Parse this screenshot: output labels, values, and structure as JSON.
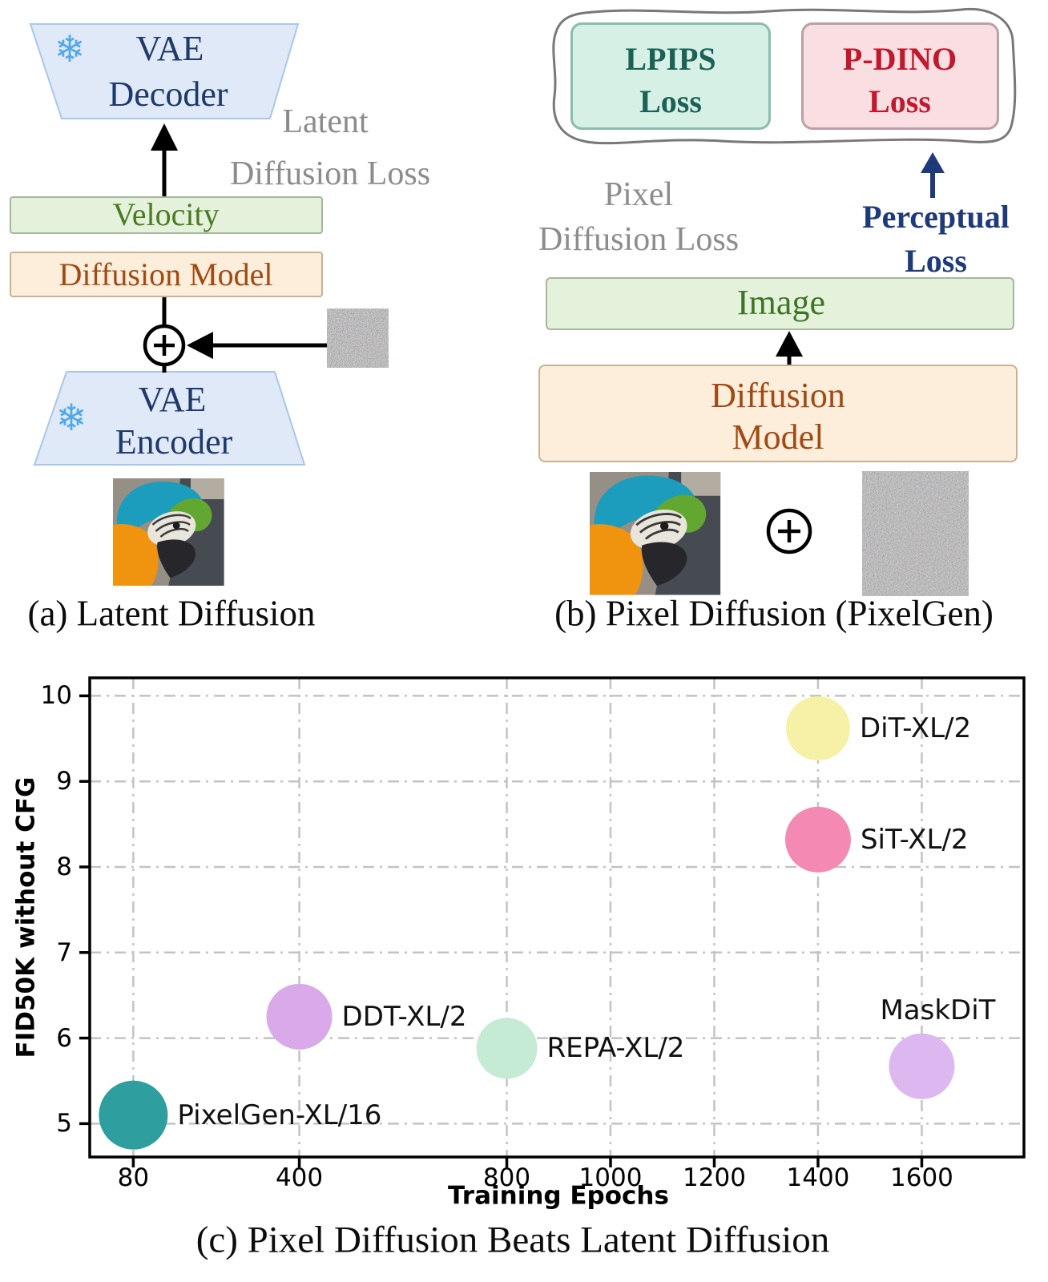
{
  "panel_a": {
    "decoder_line1": "VAE",
    "decoder_line2": "Decoder",
    "encoder_line1": "VAE",
    "encoder_line2": "Encoder",
    "velocity_label": "Velocity",
    "diffusion_model_label": "Diffusion Model",
    "loss_line1": "Latent",
    "loss_line2": "Diffusion Loss",
    "snowflake_icon": "❄",
    "plus_icon": "+",
    "caption": "(a) Latent Diffusion"
  },
  "panel_b": {
    "lpips_line1": "LPIPS",
    "lpips_line2": "Loss",
    "pdino_line1": "P-DINO",
    "pdino_line2": "Loss",
    "pixel_loss_line1": "Pixel",
    "pixel_loss_line2": "Diffusion Loss",
    "perceptual_line1": "Perceptual",
    "perceptual_line2": "Loss",
    "image_label": "Image",
    "dm_line1": "Diffusion",
    "dm_line2": "Model",
    "plus_icon": "+",
    "caption": "(b) Pixel Diffusion (PixelGen)"
  },
  "chart_data": {
    "type": "scatter",
    "title": "(c) Pixel Diffusion Beats Latent Diffusion",
    "xlabel": "Training Epochs",
    "ylabel": "FID50K without CFG",
    "xlim": [
      -4,
      1797
    ],
    "ylim": [
      4.61,
      10.21
    ],
    "x_ticks": [
      80,
      400,
      800,
      1000,
      1200,
      1400,
      1600
    ],
    "y_ticks": [
      10,
      9,
      8,
      7,
      6,
      5
    ],
    "grid": "dash-dot light gray, on",
    "legend": "none (direct point labels)",
    "points": [
      {
        "label": "PixelGen-XL/16",
        "x": 80,
        "y": 5.1,
        "r": 43,
        "color": "#2E9E9E",
        "label_pos": "right"
      },
      {
        "label": "DDT-XL/2",
        "x": 400,
        "y": 6.25,
        "r": 41,
        "color": "#D9A9E9",
        "label_pos": "right"
      },
      {
        "label": "REPA-XL/2",
        "x": 800,
        "y": 5.88,
        "r": 38,
        "color": "#C6EBD4",
        "label_pos": "right"
      },
      {
        "label": "DiT-XL/2",
        "x": 1400,
        "y": 9.62,
        "r": 40,
        "color": "#F6F1A6",
        "label_pos": "right"
      },
      {
        "label": "SiT-XL/2",
        "x": 1400,
        "y": 8.32,
        "r": 41,
        "color": "#F489B3",
        "label_pos": "right"
      },
      {
        "label": "MaskDiT",
        "x": 1600,
        "y": 5.67,
        "r": 41,
        "color": "#DDB8F0",
        "label_pos": "above"
      }
    ]
  }
}
